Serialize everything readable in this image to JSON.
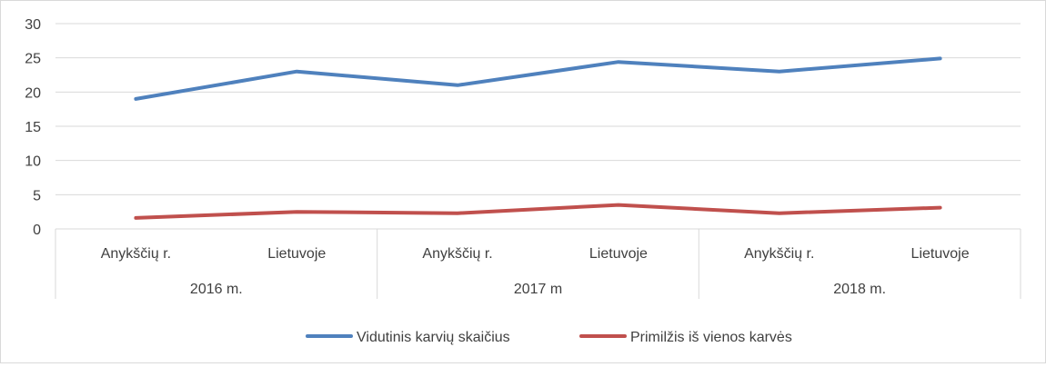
{
  "chart_data": {
    "type": "line",
    "categories": [
      {
        "label": "Anykščių r.",
        "group": "2016 m."
      },
      {
        "label": "Lietuvoje",
        "group": "2016 m."
      },
      {
        "label": "Anykščių r.",
        "group": "2017 m"
      },
      {
        "label": "Lietuvoje",
        "group": "2017 m"
      },
      {
        "label": "Anykščių r.",
        "group": "2018 m."
      },
      {
        "label": "Lietuvoje",
        "group": "2018 m."
      }
    ],
    "groups": [
      "2016 m.",
      "2017 m",
      "2018 m."
    ],
    "series": [
      {
        "name": "Vidutinis karvių skaičius",
        "color": "#4F81BD",
        "values": [
          19,
          23,
          21,
          24.4,
          23,
          24.9
        ]
      },
      {
        "name": "Primilžis iš vienos karvės",
        "color": "#C0504D",
        "values": [
          1.6,
          2.5,
          2.3,
          3.5,
          2.3,
          3.1
        ]
      }
    ],
    "ylim": [
      0,
      30
    ],
    "yticks": [
      0,
      5,
      10,
      15,
      20,
      25,
      30
    ],
    "grid": true,
    "legend_position": "bottom",
    "title": "",
    "xlabel": "",
    "ylabel": ""
  }
}
